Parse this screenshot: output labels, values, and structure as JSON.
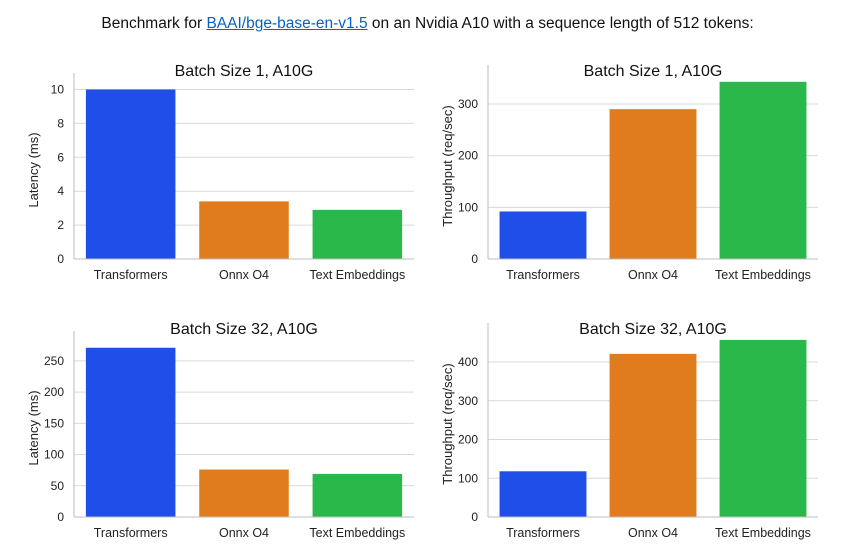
{
  "heading": {
    "prefix": "Benchmark for ",
    "link": "BAAI/bge-base-en-v1.5",
    "suffix": " on an Nvidia A10 with a sequence length of 512 tokens:"
  },
  "colors": [
    "#1f4ee8",
    "#e07b1e",
    "#2bb84a"
  ],
  "chart_data": [
    {
      "type": "bar",
      "title": "Batch Size 1, A10G",
      "ylabel": "Latency (ms)",
      "categories": [
        "Transformers",
        "Onnx O4",
        "Text Embeddings"
      ],
      "values": [
        10.0,
        3.4,
        2.9
      ],
      "ylim": [
        0,
        10.5
      ],
      "yticks": [
        0,
        2,
        4,
        6,
        8,
        10
      ],
      "grid": true
    },
    {
      "type": "bar",
      "title": "Batch Size 1, A10G",
      "ylabel": "Throughput (req/sec)",
      "categories": [
        "Transformers",
        "Onnx O4",
        "Text Embeddings"
      ],
      "values": [
        92,
        290,
        343
      ],
      "ylim": [
        0,
        360
      ],
      "yticks": [
        0,
        100,
        200,
        300
      ],
      "grid": true
    },
    {
      "type": "bar",
      "title": "Batch Size 32, A10G",
      "ylabel": "Latency (ms)",
      "categories": [
        "Transformers",
        "Onnx O4",
        "Text Embeddings"
      ],
      "values": [
        271,
        76,
        69
      ],
      "ylim": [
        0,
        285
      ],
      "yticks": [
        0,
        50,
        100,
        150,
        200,
        250
      ],
      "grid": true
    },
    {
      "type": "bar",
      "title": "Batch Size 32, A10G",
      "ylabel": "Throughput (req/sec)",
      "categories": [
        "Transformers",
        "Onnx O4",
        "Text Embeddings"
      ],
      "values": [
        118,
        421,
        457
      ],
      "ylim": [
        0,
        480
      ],
      "yticks": [
        0,
        100,
        200,
        300,
        400
      ],
      "grid": true
    }
  ]
}
